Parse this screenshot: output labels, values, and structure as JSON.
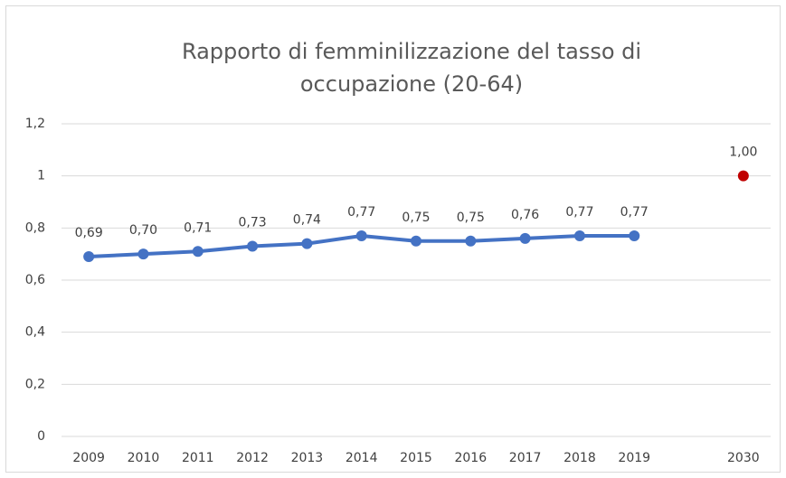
{
  "chart_data": {
    "type": "line",
    "title": [
      "Rapporto di femminilizzazione del tasso di",
      "occupazione (20-64)"
    ],
    "categories": [
      "2009",
      "2010",
      "2011",
      "2012",
      "2013",
      "2014",
      "2015",
      "2016",
      "2017",
      "2018",
      "2019",
      null,
      "2030"
    ],
    "series": [
      {
        "color": "#4472c4",
        "values": [
          0.69,
          0.7,
          0.71,
          0.73,
          0.74,
          0.77,
          0.75,
          0.75,
          0.76,
          0.77,
          0.77,
          null,
          null
        ],
        "value_labels": [
          "0,69",
          "0,70",
          "0,71",
          "0,73",
          "0,74",
          "0,77",
          "0,75",
          "0,75",
          "0,76",
          "0,77",
          "0,77",
          null,
          null
        ]
      },
      {
        "color": "#c00000",
        "values": [
          null,
          null,
          null,
          null,
          null,
          null,
          null,
          null,
          null,
          null,
          null,
          null,
          1.0
        ],
        "value_labels": [
          null,
          null,
          null,
          null,
          null,
          null,
          null,
          null,
          null,
          null,
          null,
          null,
          "1,00"
        ]
      }
    ],
    "ylim": [
      0,
      1.2
    ],
    "yticks": [
      0,
      {
        "value": 0.2,
        "label": "0,2"
      },
      {
        "value": 0.4,
        "label": "0,4"
      },
      {
        "value": 0.6,
        "label": "0,6"
      },
      {
        "value": 0.8,
        "label": "0,8"
      },
      1,
      {
        "value": 1.2,
        "label": "1,2"
      }
    ],
    "grid": true
  }
}
